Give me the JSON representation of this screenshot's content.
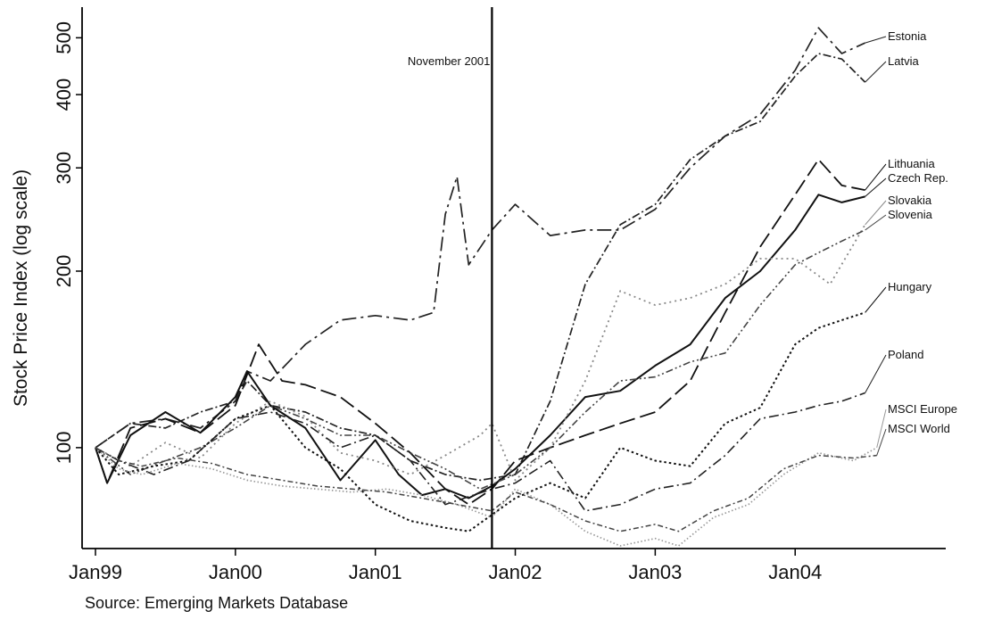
{
  "chart_data": {
    "type": "line",
    "ylabel": "Stock Price Index (log scale)",
    "yscale": "log",
    "ylim": [
      68,
      560
    ],
    "yticks": [
      100,
      200,
      300,
      400,
      500
    ],
    "xlim": [
      "1999-01",
      "2004-12"
    ],
    "xticks": [
      {
        "x": "1999-01",
        "label": "Jan99"
      },
      {
        "x": "2000-01",
        "label": "Jan00"
      },
      {
        "x": "2001-01",
        "label": "Jan01"
      },
      {
        "x": "2002-01",
        "label": "Jan02"
      },
      {
        "x": "2003-01",
        "label": "Jan03"
      },
      {
        "x": "2004-01",
        "label": "Jan04"
      }
    ],
    "grid": false,
    "legend": "none",
    "annotations": [
      {
        "x": "2001-11",
        "text": "November 2001",
        "style": "vertical-line"
      }
    ],
    "source": "Source: Emerging Markets Database",
    "series": [
      {
        "name": "Estonia",
        "style": "dashdot-long",
        "points": [
          [
            "1999-01",
            100
          ],
          [
            "1999-04",
            110
          ],
          [
            "1999-07",
            112
          ],
          [
            "1999-10",
            108
          ],
          [
            "2000-01",
            120
          ],
          [
            "2000-02",
            135
          ],
          [
            "2000-04",
            130
          ],
          [
            "2000-07",
            150
          ],
          [
            "2000-10",
            165
          ],
          [
            "2001-01",
            168
          ],
          [
            "2001-04",
            165
          ],
          [
            "2001-06",
            170
          ],
          [
            "2001-07",
            250
          ],
          [
            "2001-08",
            290
          ],
          [
            "2001-09",
            205
          ],
          [
            "2001-11",
            235
          ],
          [
            "2002-01",
            260
          ],
          [
            "2002-04",
            230
          ],
          [
            "2002-07",
            235
          ],
          [
            "2002-10",
            235
          ],
          [
            "2003-01",
            255
          ],
          [
            "2003-04",
            300
          ],
          [
            "2003-07",
            340
          ],
          [
            "2003-10",
            370
          ],
          [
            "2004-01",
            440
          ],
          [
            "2004-03",
            520
          ],
          [
            "2004-05",
            470
          ],
          [
            "2004-07",
            490
          ]
        ]
      },
      {
        "name": "Latvia",
        "style": "dashdot-dense",
        "points": [
          [
            "1999-01",
            100
          ],
          [
            "1999-04",
            110
          ],
          [
            "1999-07",
            108
          ],
          [
            "1999-10",
            115
          ],
          [
            "2000-01",
            120
          ],
          [
            "2000-02",
            130
          ],
          [
            "2000-04",
            118
          ],
          [
            "2000-07",
            115
          ],
          [
            "2000-10",
            108
          ],
          [
            "2001-01",
            105
          ],
          [
            "2001-04",
            95
          ],
          [
            "2001-07",
            90
          ],
          [
            "2001-10",
            88
          ],
          [
            "2002-01",
            90
          ],
          [
            "2002-04",
            120
          ],
          [
            "2002-07",
            190
          ],
          [
            "2002-10",
            240
          ],
          [
            "2003-01",
            260
          ],
          [
            "2003-04",
            310
          ],
          [
            "2003-07",
            340
          ],
          [
            "2003-10",
            360
          ],
          [
            "2004-01",
            430
          ],
          [
            "2004-03",
            470
          ],
          [
            "2004-05",
            460
          ],
          [
            "2004-07",
            420
          ]
        ]
      },
      {
        "name": "Lithuania",
        "style": "longdash",
        "points": [
          [
            "1999-01",
            100
          ],
          [
            "1999-02",
            87
          ],
          [
            "1999-04",
            108
          ],
          [
            "1999-07",
            112
          ],
          [
            "1999-10",
            106
          ],
          [
            "2000-01",
            118
          ],
          [
            "2000-03",
            150
          ],
          [
            "2000-05",
            130
          ],
          [
            "2000-07",
            128
          ],
          [
            "2000-10",
            122
          ],
          [
            "2001-01",
            110
          ],
          [
            "2001-04",
            98
          ],
          [
            "2001-07",
            85
          ],
          [
            "2001-09",
            80
          ],
          [
            "2001-11",
            85
          ],
          [
            "2002-01",
            95
          ],
          [
            "2002-04",
            100
          ],
          [
            "2002-07",
            105
          ],
          [
            "2002-10",
            110
          ],
          [
            "2003-01",
            115
          ],
          [
            "2003-04",
            130
          ],
          [
            "2003-07",
            170
          ],
          [
            "2003-10",
            220
          ],
          [
            "2004-01",
            270
          ],
          [
            "2004-03",
            310
          ],
          [
            "2004-05",
            280
          ],
          [
            "2004-07",
            275
          ]
        ]
      },
      {
        "name": "Czech Rep.",
        "style": "solid",
        "points": [
          [
            "1999-01",
            100
          ],
          [
            "1999-02",
            87
          ],
          [
            "1999-04",
            105
          ],
          [
            "1999-07",
            115
          ],
          [
            "1999-10",
            106
          ],
          [
            "2000-01",
            122
          ],
          [
            "2000-02",
            135
          ],
          [
            "2000-04",
            118
          ],
          [
            "2000-07",
            108
          ],
          [
            "2000-10",
            88
          ],
          [
            "2001-01",
            103
          ],
          [
            "2001-03",
            90
          ],
          [
            "2001-05",
            83
          ],
          [
            "2001-07",
            85
          ],
          [
            "2001-09",
            82
          ],
          [
            "2001-11",
            86
          ],
          [
            "2002-01",
            92
          ],
          [
            "2002-04",
            105
          ],
          [
            "2002-07",
            122
          ],
          [
            "2002-10",
            125
          ],
          [
            "2003-01",
            138
          ],
          [
            "2003-04",
            150
          ],
          [
            "2003-07",
            180
          ],
          [
            "2003-10",
            200
          ],
          [
            "2004-01",
            235
          ],
          [
            "2004-03",
            270
          ],
          [
            "2004-05",
            262
          ],
          [
            "2004-07",
            268
          ]
        ]
      },
      {
        "name": "Slovakia",
        "style": "dotted-sparse",
        "points": [
          [
            "1999-01",
            100
          ],
          [
            "1999-04",
            93
          ],
          [
            "1999-07",
            102
          ],
          [
            "1999-10",
            96
          ],
          [
            "2000-01",
            110
          ],
          [
            "2000-04",
            120
          ],
          [
            "2000-07",
            113
          ],
          [
            "2000-10",
            98
          ],
          [
            "2001-01",
            95
          ],
          [
            "2001-04",
            90
          ],
          [
            "2001-07",
            97
          ],
          [
            "2001-10",
            105
          ],
          [
            "2001-11",
            110
          ],
          [
            "2002-01",
            88
          ],
          [
            "2002-04",
            100
          ],
          [
            "2002-07",
            130
          ],
          [
            "2002-10",
            185
          ],
          [
            "2003-01",
            175
          ],
          [
            "2003-04",
            180
          ],
          [
            "2003-07",
            190
          ],
          [
            "2003-10",
            210
          ],
          [
            "2004-01",
            210
          ],
          [
            "2004-04",
            190
          ],
          [
            "2004-07",
            240
          ]
        ]
      },
      {
        "name": "Slovenia",
        "style": "dashdotdot",
        "points": [
          [
            "1999-01",
            100
          ],
          [
            "1999-04",
            90
          ],
          [
            "1999-07",
            95
          ],
          [
            "1999-10",
            100
          ],
          [
            "2000-01",
            108
          ],
          [
            "2000-04",
            118
          ],
          [
            "2000-07",
            112
          ],
          [
            "2000-10",
            105
          ],
          [
            "2001-01",
            105
          ],
          [
            "2001-04",
            98
          ],
          [
            "2001-07",
            92
          ],
          [
            "2001-10",
            85
          ],
          [
            "2002-01",
            90
          ],
          [
            "2002-04",
            100
          ],
          [
            "2002-07",
            115
          ],
          [
            "2002-10",
            130
          ],
          [
            "2003-01",
            132
          ],
          [
            "2003-04",
            140
          ],
          [
            "2003-07",
            145
          ],
          [
            "2003-10",
            175
          ],
          [
            "2004-01",
            205
          ],
          [
            "2004-03",
            215
          ],
          [
            "2004-05",
            225
          ],
          [
            "2004-07",
            235
          ]
        ]
      },
      {
        "name": "Hungary",
        "style": "dotted-dense",
        "points": [
          [
            "1999-01",
            100
          ],
          [
            "1999-03",
            90
          ],
          [
            "1999-06",
            93
          ],
          [
            "1999-09",
            95
          ],
          [
            "2000-01",
            112
          ],
          [
            "2000-04",
            118
          ],
          [
            "2000-07",
            100
          ],
          [
            "2000-10",
            92
          ],
          [
            "2001-01",
            80
          ],
          [
            "2001-04",
            75
          ],
          [
            "2001-07",
            73
          ],
          [
            "2001-09",
            72
          ],
          [
            "2002-01",
            82
          ],
          [
            "2002-04",
            87
          ],
          [
            "2002-07",
            82
          ],
          [
            "2002-10",
            100
          ],
          [
            "2003-01",
            95
          ],
          [
            "2003-04",
            93
          ],
          [
            "2003-07",
            110
          ],
          [
            "2003-10",
            117
          ],
          [
            "2004-01",
            150
          ],
          [
            "2004-03",
            160
          ],
          [
            "2004-05",
            165
          ],
          [
            "2004-07",
            170
          ]
        ]
      },
      {
        "name": "Poland",
        "style": "dashdot",
        "points": [
          [
            "1999-01",
            100
          ],
          [
            "1999-03",
            95
          ],
          [
            "1999-06",
            90
          ],
          [
            "1999-09",
            95
          ],
          [
            "2000-01",
            112
          ],
          [
            "2000-04",
            115
          ],
          [
            "2000-07",
            110
          ],
          [
            "2000-10",
            100
          ],
          [
            "2001-01",
            105
          ],
          [
            "2001-04",
            95
          ],
          [
            "2001-07",
            80
          ],
          [
            "2001-11",
            85
          ],
          [
            "2002-01",
            87
          ],
          [
            "2002-04",
            95
          ],
          [
            "2002-07",
            78
          ],
          [
            "2002-10",
            80
          ],
          [
            "2003-01",
            85
          ],
          [
            "2003-04",
            87
          ],
          [
            "2003-07",
            97
          ],
          [
            "2003-10",
            112
          ],
          [
            "2004-01",
            115
          ],
          [
            "2004-03",
            118
          ],
          [
            "2004-05",
            120
          ],
          [
            "2004-07",
            124
          ]
        ]
      },
      {
        "name": "MSCI Europe",
        "style": "dotted-fine",
        "points": [
          [
            "1999-01",
            100
          ],
          [
            "1999-03",
            92
          ],
          [
            "1999-05",
            90
          ],
          [
            "1999-08",
            94
          ],
          [
            "1999-11",
            92
          ],
          [
            "2000-02",
            88
          ],
          [
            "2000-05",
            86
          ],
          [
            "2000-08",
            85
          ],
          [
            "2000-11",
            84
          ],
          [
            "2001-02",
            85
          ],
          [
            "2001-05",
            83
          ],
          [
            "2001-08",
            80
          ],
          [
            "2001-11",
            76
          ],
          [
            "2002-01",
            85
          ],
          [
            "2002-04",
            80
          ],
          [
            "2002-07",
            72
          ],
          [
            "2002-10",
            68
          ],
          [
            "2003-01",
            70
          ],
          [
            "2003-03",
            68
          ],
          [
            "2003-06",
            76
          ],
          [
            "2003-09",
            80
          ],
          [
            "2003-12",
            90
          ],
          [
            "2004-03",
            98
          ],
          [
            "2004-06",
            95
          ],
          [
            "2004-08",
            100
          ]
        ]
      },
      {
        "name": "MSCI World",
        "style": "dashdot-tight",
        "points": [
          [
            "1999-01",
            100
          ],
          [
            "1999-03",
            95
          ],
          [
            "1999-05",
            93
          ],
          [
            "1999-08",
            96
          ],
          [
            "1999-11",
            94
          ],
          [
            "2000-02",
            90
          ],
          [
            "2000-05",
            88
          ],
          [
            "2000-08",
            86
          ],
          [
            "2000-11",
            85
          ],
          [
            "2001-02",
            84
          ],
          [
            "2001-05",
            82
          ],
          [
            "2001-08",
            80
          ],
          [
            "2001-11",
            78
          ],
          [
            "2002-01",
            84
          ],
          [
            "2002-04",
            80
          ],
          [
            "2002-07",
            75
          ],
          [
            "2002-10",
            72
          ],
          [
            "2003-01",
            74
          ],
          [
            "2003-03",
            72
          ],
          [
            "2003-06",
            78
          ],
          [
            "2003-09",
            82
          ],
          [
            "2003-12",
            92
          ],
          [
            "2004-03",
            97
          ],
          [
            "2004-06",
            96
          ],
          [
            "2004-08",
            97
          ]
        ]
      }
    ]
  }
}
